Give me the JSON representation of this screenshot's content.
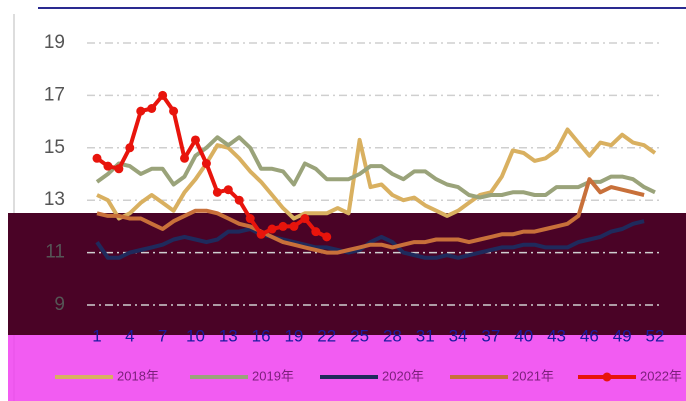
{
  "chart_data": {
    "type": "line",
    "categories": [
      1,
      null,
      null,
      4,
      null,
      null,
      7,
      null,
      null,
      10,
      null,
      null,
      13,
      null,
      null,
      16,
      null,
      null,
      19,
      null,
      null,
      22,
      null,
      null,
      25,
      null,
      null,
      28,
      null,
      null,
      31,
      null,
      null,
      34,
      null,
      null,
      37,
      null,
      null,
      40,
      null,
      null,
      43,
      null,
      null,
      46,
      null,
      null,
      49,
      null,
      null,
      52
    ],
    "ylim": [
      9,
      19
    ],
    "yticks": [
      9,
      11,
      13,
      15,
      17,
      19
    ],
    "grid": true,
    "legend": "bottom",
    "series": [
      {
        "name": "2018年",
        "color": "#d9b060",
        "marker": false,
        "values": [
          13.2,
          13.0,
          12.3,
          12.5,
          12.9,
          13.2,
          12.9,
          12.6,
          13.3,
          13.8,
          14.4,
          15.1,
          15.0,
          14.6,
          14.1,
          13.7,
          13.2,
          12.7,
          12.3,
          12.5,
          12.5,
          12.5,
          12.7,
          12.5,
          15.3,
          13.5,
          13.6,
          13.2,
          13.0,
          13.1,
          12.8,
          12.6,
          12.4,
          12.6,
          12.9,
          13.2,
          13.3,
          13.9,
          14.9,
          14.8,
          14.5,
          14.6,
          14.9,
          15.7,
          15.2,
          14.7,
          15.2,
          15.1,
          15.5,
          15.2,
          15.1,
          14.8
        ]
      },
      {
        "name": "2019年",
        "color": "#9aa37a",
        "marker": false,
        "values": [
          13.7,
          14.0,
          14.4,
          14.3,
          14.0,
          14.2,
          14.2,
          13.6,
          13.9,
          14.7,
          15.0,
          15.4,
          15.1,
          15.4,
          15.0,
          14.2,
          14.2,
          14.1,
          13.6,
          14.4,
          14.2,
          13.8,
          13.8,
          13.8,
          14.0,
          14.3,
          14.3,
          14.0,
          13.8,
          14.1,
          14.1,
          13.8,
          13.6,
          13.5,
          13.2,
          13.1,
          13.2,
          13.2,
          13.3,
          13.3,
          13.2,
          13.2,
          13.5,
          13.5,
          13.5,
          13.7,
          13.7,
          13.9,
          13.9,
          13.8,
          13.5,
          13.3
        ]
      },
      {
        "name": "2020年",
        "color": "#1f2a5c",
        "marker": false,
        "values": [
          11.4,
          10.8,
          10.8,
          11.0,
          11.1,
          11.2,
          11.3,
          11.5,
          11.6,
          11.5,
          11.4,
          11.5,
          11.8,
          11.8,
          11.9,
          11.7,
          11.6,
          11.5,
          11.4,
          11.3,
          11.2,
          11.2,
          11.1,
          11.0,
          11.1,
          11.4,
          11.6,
          11.4,
          11.0,
          10.9,
          10.8,
          10.8,
          10.9,
          10.8,
          10.9,
          11.0,
          11.1,
          11.2,
          11.2,
          11.3,
          11.3,
          11.2,
          11.2,
          11.2,
          11.4,
          11.5,
          11.6,
          11.8,
          11.9,
          12.1,
          12.2,
          null
        ]
      },
      {
        "name": "2021年",
        "color": "#c8703a",
        "marker": false,
        "values": [
          12.5,
          12.4,
          12.4,
          12.3,
          12.3,
          12.1,
          11.9,
          12.2,
          12.4,
          12.6,
          12.6,
          12.5,
          12.3,
          12.1,
          12.0,
          11.8,
          11.6,
          11.4,
          11.3,
          11.2,
          11.1,
          11.0,
          11.0,
          11.1,
          11.2,
          11.3,
          11.3,
          11.2,
          11.3,
          11.4,
          11.4,
          11.5,
          11.5,
          11.5,
          11.4,
          11.5,
          11.6,
          11.7,
          11.7,
          11.8,
          11.8,
          11.9,
          12.0,
          12.1,
          12.4,
          13.8,
          13.3,
          13.5,
          13.4,
          13.3,
          13.2,
          null
        ]
      },
      {
        "name": "2022年",
        "color": "#e8140c",
        "marker": true,
        "values": [
          14.6,
          14.3,
          14.2,
          15.0,
          16.4,
          16.5,
          17.0,
          16.4,
          14.6,
          15.3,
          14.4,
          13.3,
          13.4,
          13.0,
          12.3,
          11.7,
          11.9,
          12.0,
          12.0,
          12.3,
          11.8,
          11.6,
          null,
          null,
          null,
          null,
          null,
          null,
          null,
          null,
          null,
          null,
          null,
          null,
          null,
          null,
          null,
          null,
          null,
          null,
          null,
          null,
          null,
          null,
          null,
          null,
          null,
          null,
          null,
          null,
          null,
          null
        ]
      }
    ]
  }
}
